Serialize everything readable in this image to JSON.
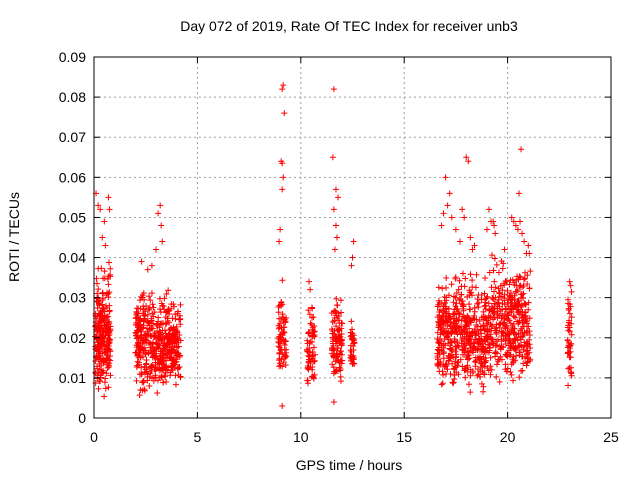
{
  "chart_data": {
    "type": "scatter",
    "title": "Day 072 of 2019, Rate Of TEC Index for receiver unb3",
    "xlabel": "GPS time / hours",
    "ylabel": "ROTI / TECUs",
    "xlim": [
      0,
      25
    ],
    "ylim": [
      0,
      0.09
    ],
    "x_ticks": [
      0,
      5,
      10,
      15,
      20,
      25
    ],
    "y_ticks": [
      0,
      0.01,
      0.02,
      0.03,
      0.04,
      0.05,
      0.06,
      0.07,
      0.08,
      0.09
    ],
    "x_tick_labels": [
      "0",
      "5",
      "10",
      "15",
      "20",
      "25"
    ],
    "y_tick_labels": [
      "0",
      "0.01",
      "0.02",
      "0.03",
      "0.04",
      "0.05",
      "0.06",
      "0.07",
      "0.08",
      "0.09"
    ],
    "grid": true,
    "marker": "plus",
    "marker_color": "#ff0000",
    "clusters": [
      {
        "x_range": [
          0.05,
          0.8
        ],
        "y_range": [
          0.004,
          0.041
        ],
        "n": 260
      },
      {
        "x_range": [
          2.0,
          2.9
        ],
        "y_range": [
          0.005,
          0.036
        ],
        "n": 200
      },
      {
        "x_range": [
          2.9,
          4.2
        ],
        "y_range": [
          0.005,
          0.034
        ],
        "n": 280
      },
      {
        "x_range": [
          8.9,
          9.3
        ],
        "y_range": [
          0.007,
          0.037
        ],
        "n": 70
      },
      {
        "x_range": [
          10.3,
          10.7
        ],
        "y_range": [
          0.006,
          0.031
        ],
        "n": 70
      },
      {
        "x_range": [
          11.5,
          12.0
        ],
        "y_range": [
          0.006,
          0.036
        ],
        "n": 110
      },
      {
        "x_range": [
          12.4,
          12.6
        ],
        "y_range": [
          0.009,
          0.027
        ],
        "n": 35
      },
      {
        "x_range": [
          16.6,
          19.2
        ],
        "y_range": [
          0.005,
          0.04
        ],
        "n": 520
      },
      {
        "x_range": [
          19.2,
          21.1
        ],
        "y_range": [
          0.006,
          0.045
        ],
        "n": 360
      },
      {
        "x_range": [
          22.9,
          23.1
        ],
        "y_range": [
          0.006,
          0.035
        ],
        "n": 45
      }
    ],
    "points": [
      [
        0.1,
        0.056
      ],
      [
        0.2,
        0.053
      ],
      [
        0.3,
        0.052
      ],
      [
        0.5,
        0.049
      ],
      [
        0.7,
        0.055
      ],
      [
        0.75,
        0.052
      ],
      [
        0.4,
        0.045
      ],
      [
        0.55,
        0.043
      ],
      [
        2.3,
        0.039
      ],
      [
        2.6,
        0.037
      ],
      [
        2.8,
        0.038
      ],
      [
        3.1,
        0.051
      ],
      [
        3.2,
        0.053
      ],
      [
        3.25,
        0.048
      ],
      [
        3.3,
        0.044
      ],
      [
        3.0,
        0.042
      ],
      [
        9.1,
        0.082
      ],
      [
        9.15,
        0.083
      ],
      [
        9.2,
        0.076
      ],
      [
        9.05,
        0.064
      ],
      [
        9.1,
        0.0635
      ],
      [
        9.15,
        0.06
      ],
      [
        9.1,
        0.057
      ],
      [
        9.0,
        0.047
      ],
      [
        8.95,
        0.044
      ],
      [
        9.1,
        0.003
      ],
      [
        10.4,
        0.034
      ],
      [
        10.45,
        0.032
      ],
      [
        11.6,
        0.082
      ],
      [
        11.55,
        0.065
      ],
      [
        11.7,
        0.057
      ],
      [
        11.8,
        0.055
      ],
      [
        11.6,
        0.052
      ],
      [
        11.7,
        0.048
      ],
      [
        11.75,
        0.045
      ],
      [
        11.65,
        0.042
      ],
      [
        11.6,
        0.004
      ],
      [
        12.55,
        0.044
      ],
      [
        12.5,
        0.04
      ],
      [
        12.45,
        0.038
      ],
      [
        17.0,
        0.06
      ],
      [
        17.2,
        0.056
      ],
      [
        17.1,
        0.053
      ],
      [
        16.9,
        0.051
      ],
      [
        16.8,
        0.048
      ],
      [
        17.3,
        0.05
      ],
      [
        17.5,
        0.047
      ],
      [
        17.7,
        0.044
      ],
      [
        17.8,
        0.052
      ],
      [
        17.9,
        0.05
      ],
      [
        18.0,
        0.065
      ],
      [
        18.1,
        0.064
      ],
      [
        18.2,
        0.045
      ],
      [
        18.3,
        0.042
      ],
      [
        18.4,
        0.043
      ],
      [
        19.0,
        0.047
      ],
      [
        19.1,
        0.052
      ],
      [
        19.2,
        0.049
      ],
      [
        19.3,
        0.049
      ],
      [
        19.35,
        0.048
      ],
      [
        19.4,
        0.046
      ],
      [
        20.2,
        0.05
      ],
      [
        20.3,
        0.049
      ],
      [
        20.4,
        0.048
      ],
      [
        20.5,
        0.047
      ],
      [
        20.6,
        0.049
      ],
      [
        20.65,
        0.067
      ],
      [
        20.55,
        0.056
      ],
      [
        20.7,
        0.046
      ],
      [
        20.8,
        0.044
      ],
      [
        21.0,
        0.043
      ],
      [
        21.05,
        0.041
      ],
      [
        23.0,
        0.034
      ],
      [
        23.05,
        0.033
      ]
    ]
  }
}
